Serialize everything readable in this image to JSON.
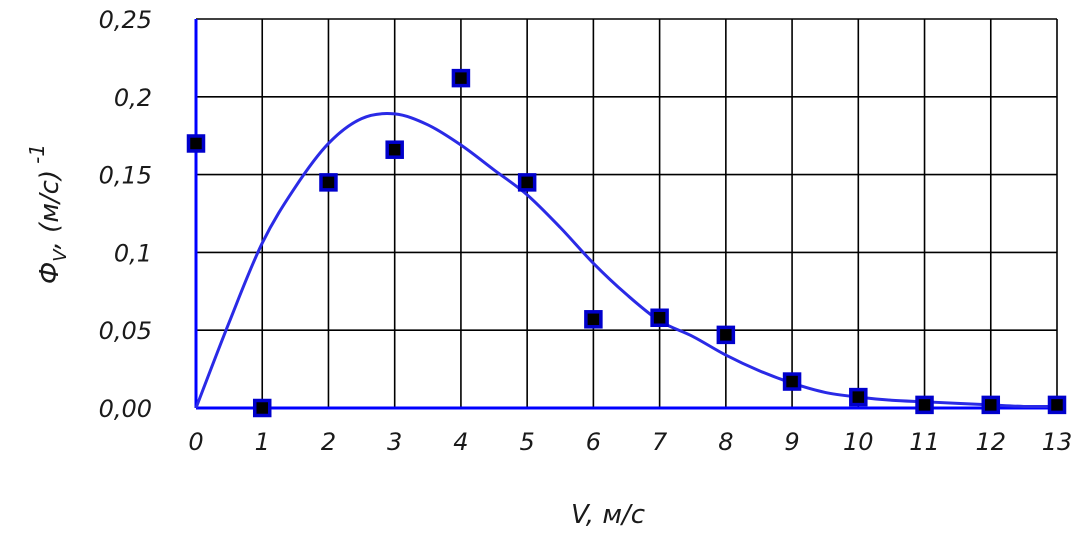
{
  "chart_data": {
    "type": "scatter",
    "xlabel": "V, м/с",
    "ylabel_main": "Ф",
    "ylabel_sub": "V",
    "ylabel_rest": ", (м/с)",
    "ylabel_sup": "-1",
    "xlim": [
      0,
      13
    ],
    "ylim": [
      0,
      0.25
    ],
    "grid": true,
    "x_tick_labels": [
      "0",
      "1",
      "2",
      "3",
      "4",
      "5",
      "6",
      "7",
      "8",
      "9",
      "10",
      "11",
      "12",
      "13"
    ],
    "x_tick_values": [
      0,
      1,
      2,
      3,
      4,
      5,
      6,
      7,
      8,
      9,
      10,
      11,
      12,
      13
    ],
    "y_tick_labels": [
      "0,00",
      "0,05",
      "0,1",
      "0,15",
      "0,2",
      "0,25"
    ],
    "y_tick_values": [
      0,
      0.05,
      0.1,
      0.15,
      0.2,
      0.25
    ],
    "series": [
      {
        "type": "scatter",
        "marker": "square",
        "x": [
          0,
          1,
          2,
          3,
          4,
          5,
          6,
          7,
          8,
          9,
          10,
          11,
          12,
          13
        ],
        "y": [
          0.17,
          0.0,
          0.145,
          0.166,
          0.212,
          0.145,
          0.057,
          0.058,
          0.047,
          0.017,
          0.007,
          0.002,
          0.002,
          0.002
        ]
      },
      {
        "type": "line",
        "x": [
          0,
          0.5,
          1,
          1.5,
          2,
          2.5,
          3,
          3.5,
          4,
          4.5,
          5,
          5.5,
          6,
          6.5,
          7,
          7.5,
          8,
          8.5,
          9,
          9.5,
          10,
          10.5,
          11,
          11.5,
          12,
          12.5,
          13
        ],
        "y": [
          0,
          0.055,
          0.106,
          0.142,
          0.17,
          0.186,
          0.189,
          0.182,
          0.169,
          0.153,
          0.137,
          0.116,
          0.093,
          0.073,
          0.056,
          0.046,
          0.034,
          0.024,
          0.016,
          0.01,
          0.007,
          0.005,
          0.004,
          0.003,
          0.002,
          0.001,
          0.001
        ]
      }
    ],
    "colors": {
      "axis": "#0000ff",
      "curve": "#2a2ae6",
      "grid": "#000000",
      "marker_fill": "#000000",
      "marker_edge": "#0000cc"
    }
  }
}
